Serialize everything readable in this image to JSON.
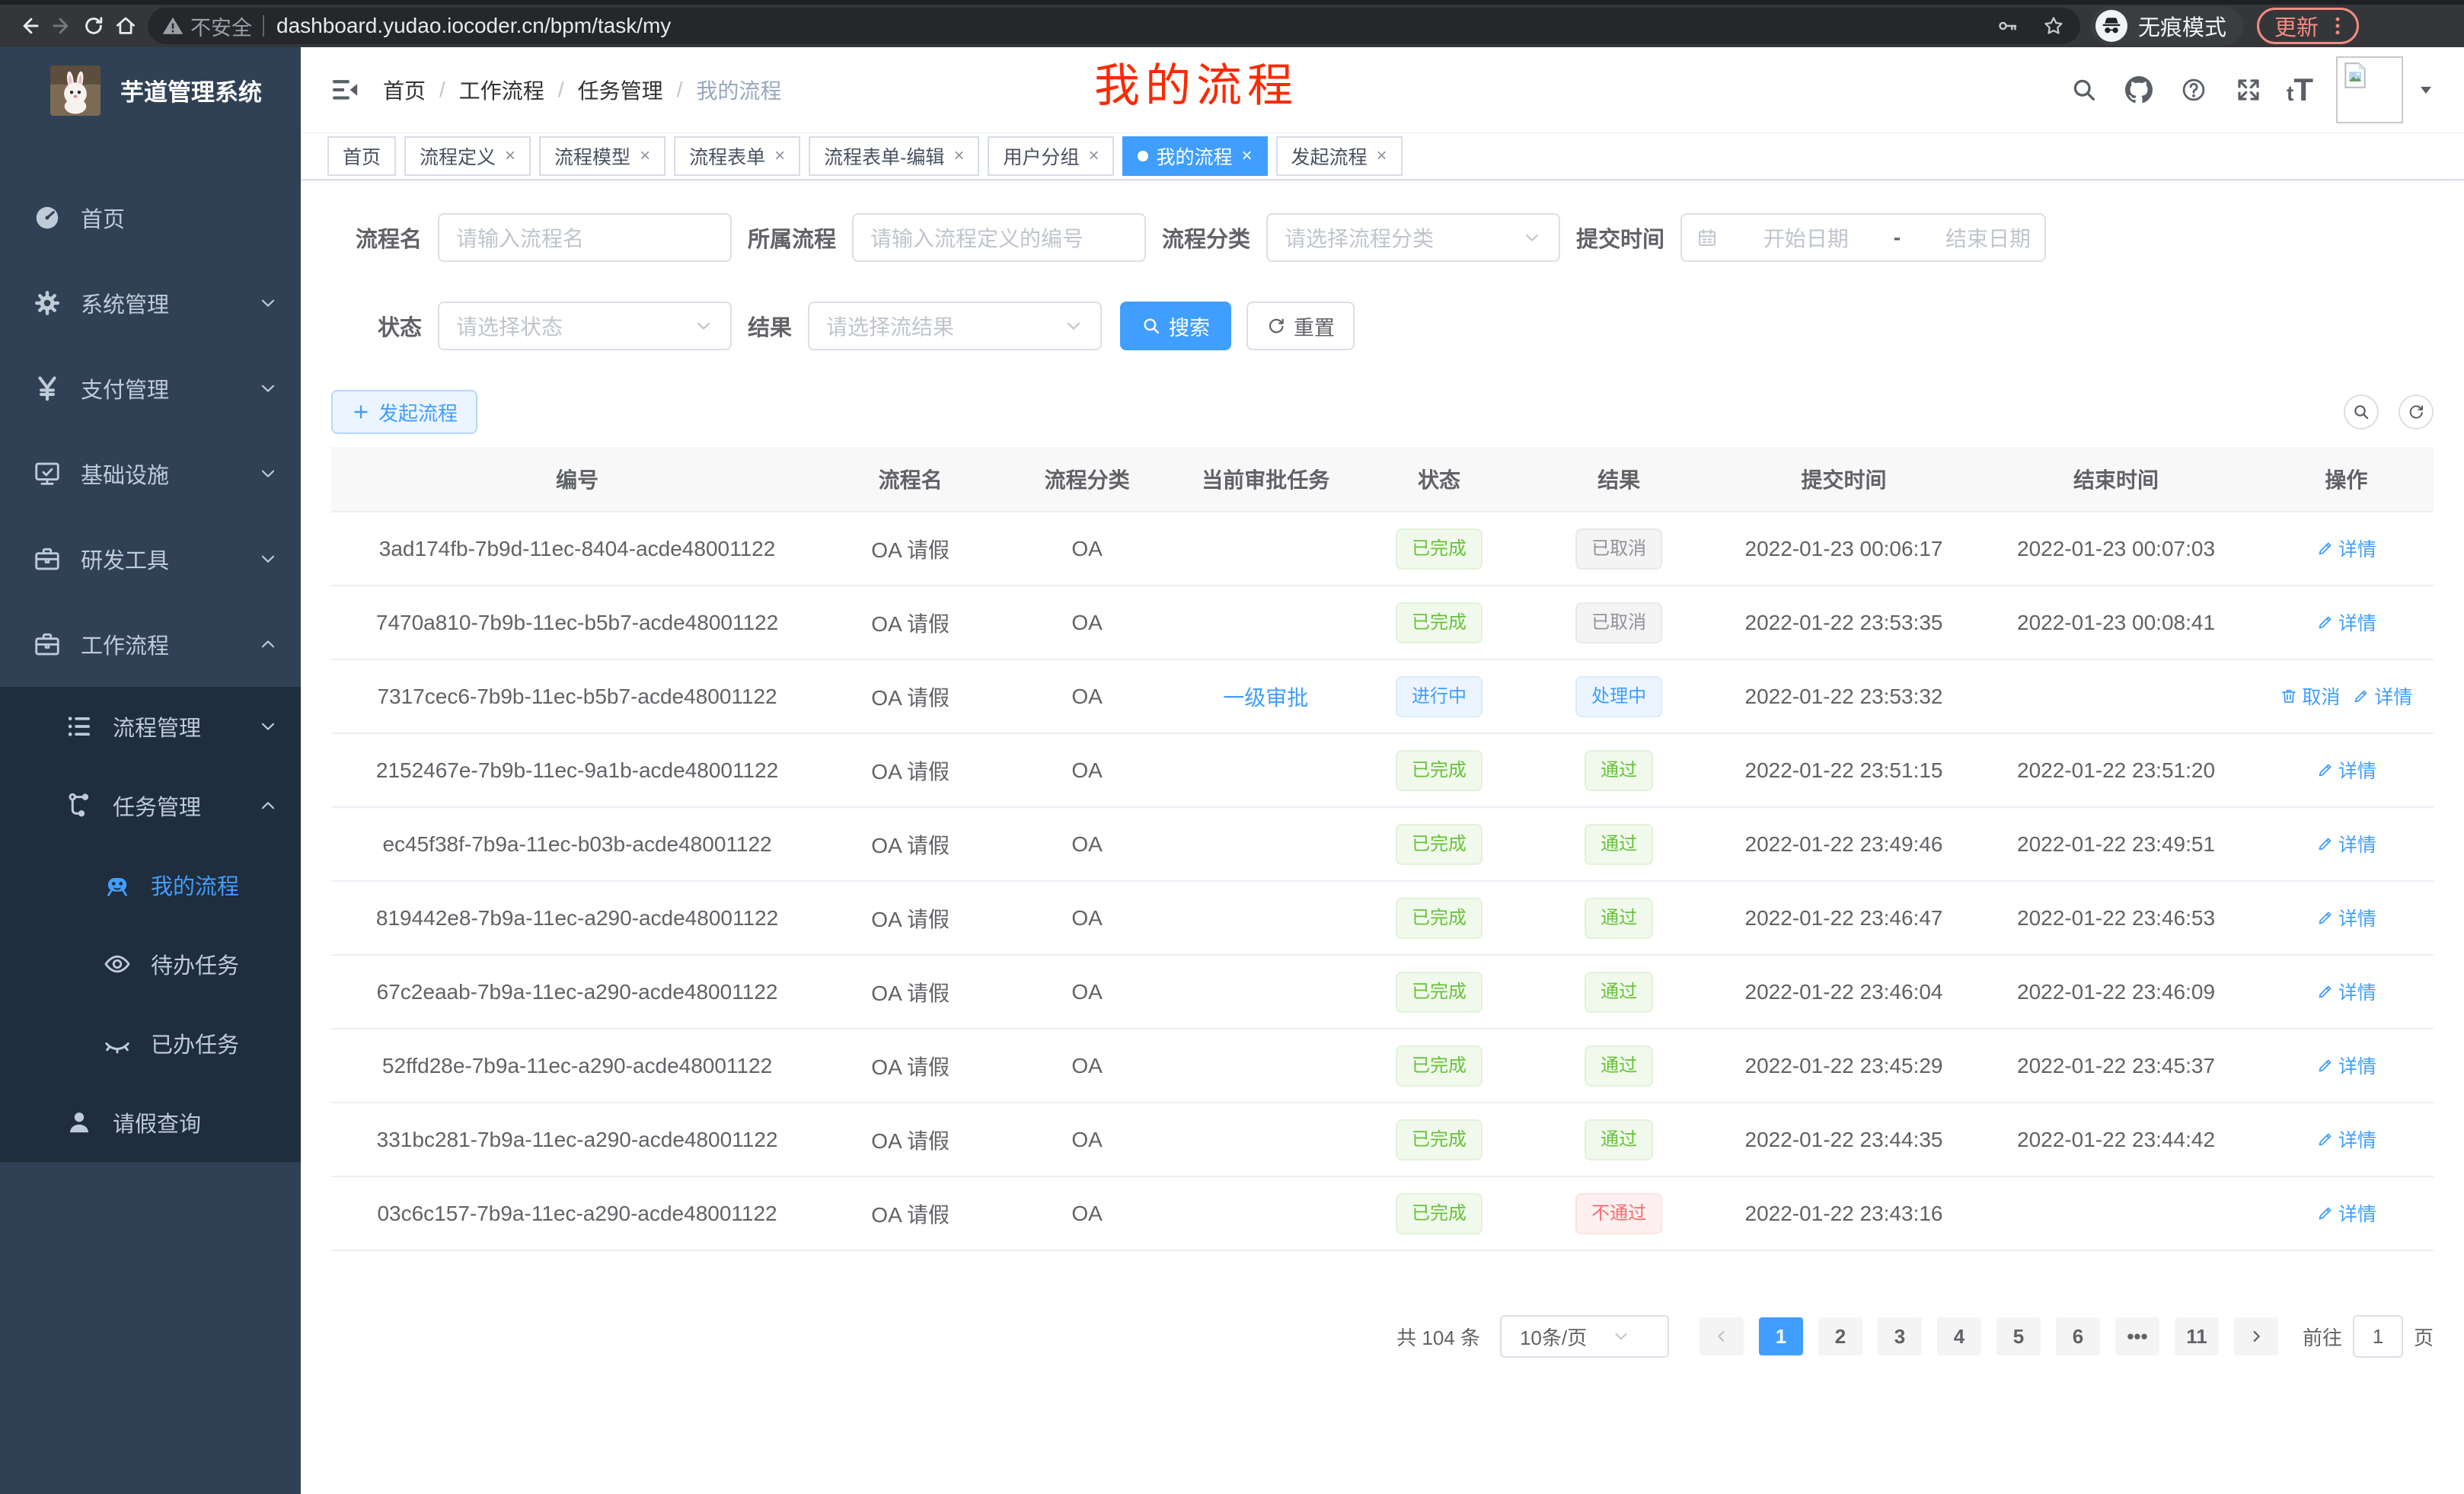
{
  "browser": {
    "security_label": "不安全",
    "url": "dashboard.yudao.iocoder.cn/bpm/task/my",
    "incognito_label": "无痕模式",
    "update_label": "更新"
  },
  "sidebar": {
    "app_title": "芋道管理系统",
    "menu": [
      {
        "label": "首页",
        "icon": "gauge",
        "level": 1
      },
      {
        "label": "系统管理",
        "icon": "gear",
        "level": 1,
        "arrow": "down"
      },
      {
        "label": "支付管理",
        "icon": "yen",
        "level": 1,
        "arrow": "down"
      },
      {
        "label": "基础设施",
        "icon": "monitor",
        "level": 1,
        "arrow": "down"
      },
      {
        "label": "研发工具",
        "icon": "briefcase",
        "level": 1,
        "arrow": "down"
      },
      {
        "label": "工作流程",
        "icon": "briefcase",
        "level": 1,
        "arrow": "up"
      },
      {
        "label": "流程管理",
        "icon": "list",
        "level": 2,
        "arrow": "down"
      },
      {
        "label": "任务管理",
        "icon": "flow",
        "level": 2,
        "arrow": "up"
      },
      {
        "label": "我的流程",
        "icon": "robot",
        "level": 3,
        "active": true
      },
      {
        "label": "待办任务",
        "icon": "eye",
        "level": 3
      },
      {
        "label": "已办任务",
        "icon": "eye-closed",
        "level": 3
      },
      {
        "label": "请假查询",
        "icon": "user",
        "level": 2
      }
    ]
  },
  "navbar": {
    "breadcrumb": [
      "首页",
      "工作流程",
      "任务管理",
      "我的流程"
    ],
    "font_icon_text": "tT"
  },
  "overlay_title": "我的流程",
  "tabs": [
    {
      "label": "首页",
      "closable": false,
      "active": false
    },
    {
      "label": "流程定义",
      "closable": true,
      "active": false
    },
    {
      "label": "流程模型",
      "closable": true,
      "active": false
    },
    {
      "label": "流程表单",
      "closable": true,
      "active": false
    },
    {
      "label": "流程表单-编辑",
      "closable": true,
      "active": false
    },
    {
      "label": "用户分组",
      "closable": true,
      "active": false
    },
    {
      "label": "我的流程",
      "closable": true,
      "active": true
    },
    {
      "label": "发起流程",
      "closable": true,
      "active": false
    }
  ],
  "filters": {
    "row1": [
      {
        "label": "流程名",
        "type": "input",
        "placeholder": "请输入流程名"
      },
      {
        "label": "所属流程",
        "type": "input",
        "placeholder": "请输入流程定义的编号"
      },
      {
        "label": "流程分类",
        "type": "select",
        "placeholder": "请选择流程分类"
      },
      {
        "label": "提交时间",
        "type": "daterange",
        "start_placeholder": "开始日期",
        "separator": "-",
        "end_placeholder": "结束日期"
      }
    ],
    "row2": [
      {
        "label": "状态",
        "type": "select",
        "placeholder": "请选择状态"
      },
      {
        "label": "结果",
        "type": "select",
        "placeholder": "请选择流结果"
      }
    ],
    "search_label": "搜索",
    "reset_label": "重置"
  },
  "toolbar": {
    "create_label": "发起流程"
  },
  "table": {
    "columns": [
      "编号",
      "流程名",
      "流程分类",
      "当前审批任务",
      "状态",
      "结果",
      "提交时间",
      "结束时间",
      "操作"
    ],
    "col_widths": [
      "23.4%",
      "8.3%",
      "8.5%",
      "8.5%",
      "8.0%",
      "9.1%",
      "12.3%",
      "13.6%",
      "8.3%"
    ],
    "rows": [
      {
        "id": "3ad174fb-7b9d-11ec-8404-acde48001122",
        "name": "OA 请假",
        "category": "OA",
        "task": "",
        "status": {
          "label": "已完成",
          "type": "success"
        },
        "result": {
          "label": "已取消",
          "type": "info"
        },
        "submit_time": "2022-01-23 00:06:17",
        "end_time": "2022-01-23 00:07:03",
        "actions": [
          {
            "label": "详情",
            "icon": "pencil"
          }
        ]
      },
      {
        "id": "7470a810-7b9b-11ec-b5b7-acde48001122",
        "name": "OA 请假",
        "category": "OA",
        "task": "",
        "status": {
          "label": "已完成",
          "type": "success"
        },
        "result": {
          "label": "已取消",
          "type": "info"
        },
        "submit_time": "2022-01-22 23:53:35",
        "end_time": "2022-01-23 00:08:41",
        "actions": [
          {
            "label": "详情",
            "icon": "pencil"
          }
        ]
      },
      {
        "id": "7317cec6-7b9b-11ec-b5b7-acde48001122",
        "name": "OA 请假",
        "category": "OA",
        "task": "一级审批",
        "status": {
          "label": "进行中",
          "type": "primary"
        },
        "result": {
          "label": "处理中",
          "type": "primary"
        },
        "submit_time": "2022-01-22 23:53:32",
        "end_time": "",
        "actions": [
          {
            "label": "取消",
            "icon": "trash"
          },
          {
            "label": "详情",
            "icon": "pencil"
          }
        ]
      },
      {
        "id": "2152467e-7b9b-11ec-9a1b-acde48001122",
        "name": "OA 请假",
        "category": "OA",
        "task": "",
        "status": {
          "label": "已完成",
          "type": "success"
        },
        "result": {
          "label": "通过",
          "type": "success"
        },
        "submit_time": "2022-01-22 23:51:15",
        "end_time": "2022-01-22 23:51:20",
        "actions": [
          {
            "label": "详情",
            "icon": "pencil"
          }
        ]
      },
      {
        "id": "ec45f38f-7b9a-11ec-b03b-acde48001122",
        "name": "OA 请假",
        "category": "OA",
        "task": "",
        "status": {
          "label": "已完成",
          "type": "success"
        },
        "result": {
          "label": "通过",
          "type": "success"
        },
        "submit_time": "2022-01-22 23:49:46",
        "end_time": "2022-01-22 23:49:51",
        "actions": [
          {
            "label": "详情",
            "icon": "pencil"
          }
        ]
      },
      {
        "id": "819442e8-7b9a-11ec-a290-acde48001122",
        "name": "OA 请假",
        "category": "OA",
        "task": "",
        "status": {
          "label": "已完成",
          "type": "success"
        },
        "result": {
          "label": "通过",
          "type": "success"
        },
        "submit_time": "2022-01-22 23:46:47",
        "end_time": "2022-01-22 23:46:53",
        "actions": [
          {
            "label": "详情",
            "icon": "pencil"
          }
        ]
      },
      {
        "id": "67c2eaab-7b9a-11ec-a290-acde48001122",
        "name": "OA 请假",
        "category": "OA",
        "task": "",
        "status": {
          "label": "已完成",
          "type": "success"
        },
        "result": {
          "label": "通过",
          "type": "success"
        },
        "submit_time": "2022-01-22 23:46:04",
        "end_time": "2022-01-22 23:46:09",
        "actions": [
          {
            "label": "详情",
            "icon": "pencil"
          }
        ]
      },
      {
        "id": "52ffd28e-7b9a-11ec-a290-acde48001122",
        "name": "OA 请假",
        "category": "OA",
        "task": "",
        "status": {
          "label": "已完成",
          "type": "success"
        },
        "result": {
          "label": "通过",
          "type": "success"
        },
        "submit_time": "2022-01-22 23:45:29",
        "end_time": "2022-01-22 23:45:37",
        "actions": [
          {
            "label": "详情",
            "icon": "pencil"
          }
        ]
      },
      {
        "id": "331bc281-7b9a-11ec-a290-acde48001122",
        "name": "OA 请假",
        "category": "OA",
        "task": "",
        "status": {
          "label": "已完成",
          "type": "success"
        },
        "result": {
          "label": "通过",
          "type": "success"
        },
        "submit_time": "2022-01-22 23:44:35",
        "end_time": "2022-01-22 23:44:42",
        "actions": [
          {
            "label": "详情",
            "icon": "pencil"
          }
        ]
      },
      {
        "id": "03c6c157-7b9a-11ec-a290-acde48001122",
        "name": "OA 请假",
        "category": "OA",
        "task": "",
        "status": {
          "label": "已完成",
          "type": "success"
        },
        "result": {
          "label": "不通过",
          "type": "danger"
        },
        "submit_time": "2022-01-22 23:43:16",
        "end_time": "",
        "actions": [
          {
            "label": "详情",
            "icon": "pencil"
          }
        ]
      }
    ]
  },
  "pagination": {
    "total_label": "共 104 条",
    "page_size_label": "10条/页",
    "pages": [
      "1",
      "2",
      "3",
      "4",
      "5",
      "6",
      "•••",
      "11"
    ],
    "active_page": "1",
    "goto_label": "前往",
    "goto_value": "1",
    "goto_unit": "页"
  },
  "colors": {
    "accent": "#409eff",
    "sidebar_bg": "#304156",
    "submenu_bg": "#1f2d3d",
    "success": "#67c23a",
    "danger": "#f56c6c",
    "info": "#909399",
    "overlay_red": "#ff2800"
  }
}
